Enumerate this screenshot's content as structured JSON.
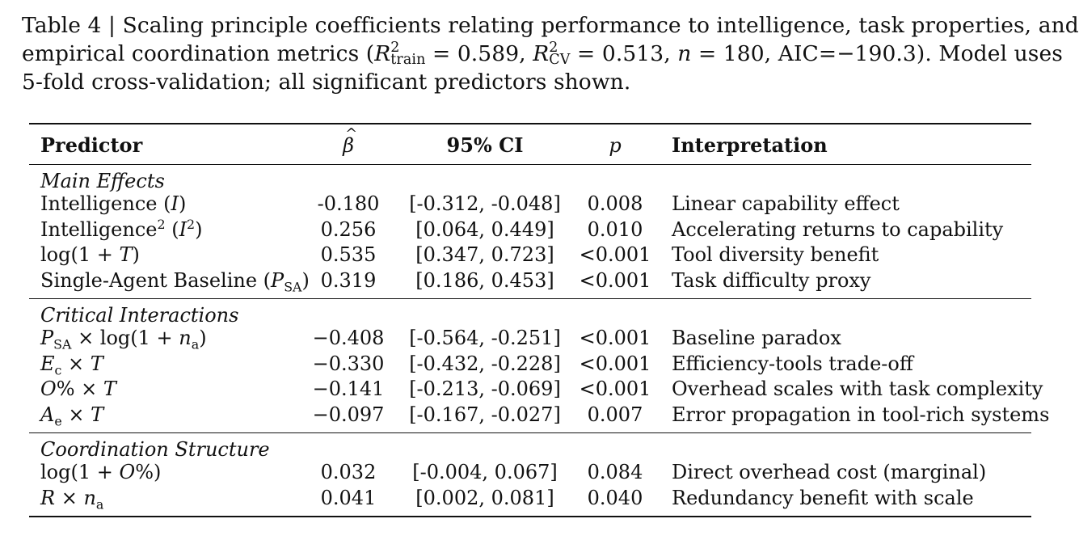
{
  "caption": {
    "line1": "Table 4 | Scaling principle coefficients relating performance to intelligence, task properties, and",
    "line2_a": "empirical coordination metrics (",
    "r2_train_symbol": "R",
    "r2_train_sup": "2",
    "r2_train_sub": "train",
    "r2_train_val": " = 0.589, ",
    "r2_cv_symbol": "R",
    "r2_cv_sup": "2",
    "r2_cv_sub": "CV",
    "r2_cv_val": " = 0.513, ",
    "n_symbol": "n",
    "n_val": " = 180, AIC=−190.3).  Model uses",
    "line3": "5-fold cross-validation; all significant predictors shown."
  },
  "table": {
    "headers": {
      "predictor": "Predictor",
      "beta": "β",
      "ci": "95% CI",
      "p": "p",
      "interpretation": "Interpretation"
    },
    "sections": [
      {
        "title": "Main Effects",
        "rows": [
          {
            "predictor": "Intelligence (I)",
            "beta": "-0.180",
            "ci": "[-0.312, -0.048]",
            "p": "0.008",
            "interpretation": "Linear capability effect"
          },
          {
            "predictor": "Intelligence² (I²)",
            "beta": "0.256",
            "ci": "[0.064, 0.449]",
            "p": "0.010",
            "interpretation": "Accelerating returns to capability"
          },
          {
            "predictor": "log(1 + T)",
            "beta": "0.535",
            "ci": "[0.347, 0.723]",
            "p": "<0.001",
            "interpretation": "Tool diversity benefit"
          },
          {
            "predictor": "Single-Agent Baseline (P_SA)",
            "beta": "0.319",
            "ci": "[0.186, 0.453]",
            "p": "<0.001",
            "interpretation": "Task difficulty proxy"
          }
        ]
      },
      {
        "title": "Critical Interactions",
        "rows": [
          {
            "predictor": "P_SA × log(1 + n_a)",
            "beta": "−0.408",
            "ci": "[-0.564, -0.251]",
            "p": "<0.001",
            "interpretation": "Baseline paradox"
          },
          {
            "predictor": "E_c × T",
            "beta": "−0.330",
            "ci": "[-0.432, -0.228]",
            "p": "<0.001",
            "interpretation": "Efficiency-tools trade-off"
          },
          {
            "predictor": "O% × T",
            "beta": "−0.141",
            "ci": "[-0.213, -0.069]",
            "p": "<0.001",
            "interpretation": "Overhead scales with task complexity"
          },
          {
            "predictor": "A_e × T",
            "beta": "−0.097",
            "ci": "[-0.167, -0.027]",
            "p": "0.007",
            "interpretation": "Error propagation in tool-rich systems"
          }
        ]
      },
      {
        "title": "Coordination Structure",
        "rows": [
          {
            "predictor": "log(1 + O%)",
            "beta": "0.032",
            "ci": "[-0.004, 0.067]",
            "p": "0.084",
            "interpretation": "Direct overhead cost (marginal)"
          },
          {
            "predictor": "R × n_a",
            "beta": "0.041",
            "ci": "[0.002, 0.081]",
            "p": "0.040",
            "interpretation": "Redundancy benefit with scale"
          }
        ]
      }
    ]
  }
}
